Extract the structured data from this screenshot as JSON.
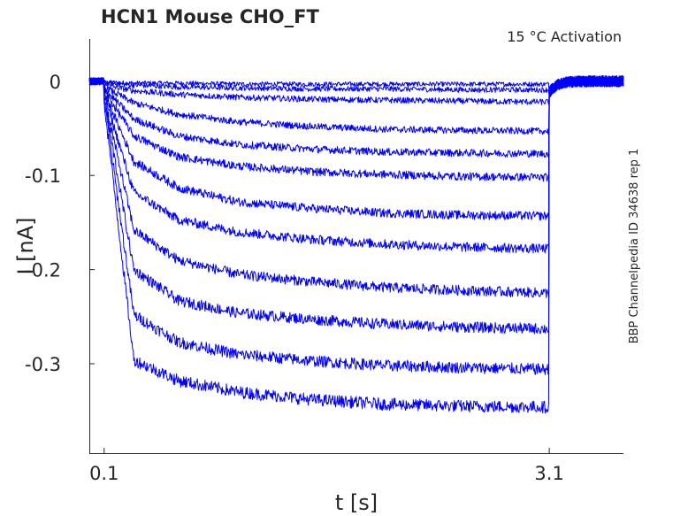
{
  "chart_data": {
    "type": "line",
    "title": "HCN1  Mouse  CHO_FT",
    "annotation": "15 °C  Activation",
    "side_label": "BBP Channelpedia ID 34638 rep 1",
    "xlabel": "t [s]",
    "ylabel": "I [nA]",
    "xlim": [
      0.0,
      3.6
    ],
    "ylim": [
      -0.395,
      0.045
    ],
    "x_ticks": [
      0.1,
      3.1
    ],
    "x_tick_labels": [
      "0.1",
      "3.1"
    ],
    "y_ticks": [
      0,
      -0.1,
      -0.2,
      -0.3
    ],
    "y_tick_labels": [
      "0",
      "-0.1",
      "-0.2",
      "-0.3"
    ],
    "grid": false,
    "line_color": "#0000ff",
    "step_start": 0.1,
    "step_end": 3.1,
    "series": [
      {
        "values": [
          0.1,
          0.3,
          0.6,
          1.0,
          1.5,
          2.0,
          2.5,
          3.1
        ],
        "steady": [
          -0.001,
          -0.002,
          -0.002,
          -0.003,
          -0.003,
          -0.003,
          -0.003,
          -0.003
        ]
      },
      {
        "values": [
          0.1,
          0.3,
          0.6,
          1.0,
          1.5,
          2.0,
          2.5,
          3.1
        ],
        "steady": [
          -0.002,
          -0.004,
          -0.006,
          -0.007,
          -0.008,
          -0.008,
          -0.009,
          -0.009
        ]
      },
      {
        "values": [
          0.1,
          0.3,
          0.6,
          1.0,
          1.5,
          2.0,
          2.5,
          3.1
        ],
        "steady": [
          -0.004,
          -0.01,
          -0.014,
          -0.017,
          -0.019,
          -0.02,
          -0.021,
          -0.022
        ]
      },
      {
        "values": [
          0.1,
          0.3,
          0.6,
          1.0,
          1.5,
          2.0,
          2.5,
          3.1
        ],
        "steady": [
          -0.006,
          -0.023,
          -0.035,
          -0.043,
          -0.048,
          -0.051,
          -0.052,
          -0.053
        ]
      },
      {
        "values": [
          0.1,
          0.3,
          0.6,
          1.0,
          1.5,
          2.0,
          2.5,
          3.1
        ],
        "steady": [
          -0.008,
          -0.04,
          -0.058,
          -0.067,
          -0.072,
          -0.075,
          -0.076,
          -0.077
        ]
      },
      {
        "values": [
          0.1,
          0.3,
          0.6,
          1.0,
          1.5,
          2.0,
          2.5,
          3.1
        ],
        "steady": [
          -0.01,
          -0.058,
          -0.08,
          -0.09,
          -0.096,
          -0.099,
          -0.101,
          -0.102
        ]
      },
      {
        "values": [
          0.1,
          0.3,
          0.6,
          1.0,
          1.5,
          2.0,
          2.5,
          3.1
        ],
        "steady": [
          -0.012,
          -0.085,
          -0.113,
          -0.128,
          -0.135,
          -0.14,
          -0.142,
          -0.143
        ]
      },
      {
        "values": [
          0.1,
          0.3,
          0.6,
          1.0,
          1.5,
          2.0,
          2.5,
          3.1
        ],
        "steady": [
          -0.014,
          -0.118,
          -0.147,
          -0.16,
          -0.168,
          -0.173,
          -0.176,
          -0.178
        ]
      },
      {
        "values": [
          0.1,
          0.3,
          0.6,
          1.0,
          1.5,
          2.0,
          2.5,
          3.1
        ],
        "steady": [
          -0.016,
          -0.158,
          -0.19,
          -0.205,
          -0.213,
          -0.219,
          -0.222,
          -0.225
        ]
      },
      {
        "values": [
          0.1,
          0.3,
          0.6,
          1.0,
          1.5,
          2.0,
          2.5,
          3.1
        ],
        "steady": [
          -0.018,
          -0.2,
          -0.233,
          -0.246,
          -0.253,
          -0.258,
          -0.261,
          -0.263
        ]
      },
      {
        "values": [
          0.1,
          0.3,
          0.6,
          1.0,
          1.5,
          2.0,
          2.5,
          3.1
        ],
        "steady": [
          -0.02,
          -0.248,
          -0.277,
          -0.29,
          -0.297,
          -0.302,
          -0.304,
          -0.306
        ]
      },
      {
        "values": [
          0.1,
          0.3,
          0.6,
          1.0,
          1.5,
          2.0,
          2.5,
          3.1
        ],
        "steady": [
          -0.022,
          -0.296,
          -0.318,
          -0.33,
          -0.338,
          -0.343,
          -0.345,
          -0.346
        ]
      }
    ]
  }
}
